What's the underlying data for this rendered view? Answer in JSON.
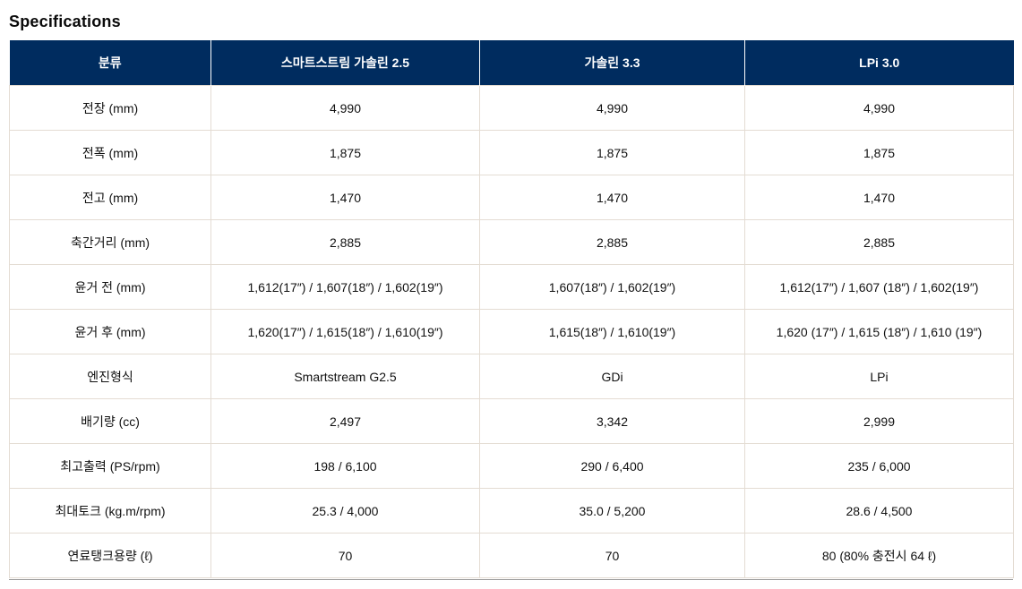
{
  "page": {
    "title": "Specifications"
  },
  "colors": {
    "header_bg": "#002c5f",
    "header_text": "#ffffff",
    "body_text": "#111111",
    "row_border": "#e4dcd3",
    "table_bottom_border": "#999999"
  },
  "table": {
    "columns": [
      "분류",
      "스마트스트림 가솔린 2.5",
      "가솔린 3.3",
      "LPi 3.0"
    ],
    "rows": [
      {
        "label": "전장 (mm)",
        "values": [
          "4,990",
          "4,990",
          "4,990"
        ]
      },
      {
        "label": "전폭 (mm)",
        "values": [
          "1,875",
          "1,875",
          "1,875"
        ]
      },
      {
        "label": "전고 (mm)",
        "values": [
          "1,470",
          "1,470",
          "1,470"
        ]
      },
      {
        "label": "축간거리 (mm)",
        "values": [
          "2,885",
          "2,885",
          "2,885"
        ]
      },
      {
        "label": "윤거 전 (mm)",
        "values": [
          "1,612(17″) / 1,607(18″) / 1,602(19″)",
          "1,607(18″) / 1,602(19″)",
          "1,612(17″) / 1,607 (18″) / 1,602(19″)"
        ]
      },
      {
        "label": "윤거 후 (mm)",
        "values": [
          "1,620(17″) / 1,615(18″) / 1,610(19″)",
          "1,615(18″) / 1,610(19″)",
          "1,620 (17″) / 1,615 (18″) / 1,610 (19″)"
        ]
      },
      {
        "label": "엔진형식",
        "values": [
          "Smartstream G2.5",
          "GDi",
          "LPi"
        ]
      },
      {
        "label": "배기량 (cc)",
        "values": [
          "2,497",
          "3,342",
          "2,999"
        ]
      },
      {
        "label": "최고출력 (PS/rpm)",
        "values": [
          "198 / 6,100",
          "290 / 6,400",
          "235 / 6,000"
        ]
      },
      {
        "label": "최대토크 (kg.m/rpm)",
        "values": [
          "25.3 / 4,000",
          "35.0 / 5,200",
          "28.6 / 4,500"
        ]
      },
      {
        "label": "연료탱크용량 (ℓ)",
        "values": [
          "70",
          "70",
          "80 (80% 충전시 64 ℓ)"
        ]
      }
    ]
  }
}
